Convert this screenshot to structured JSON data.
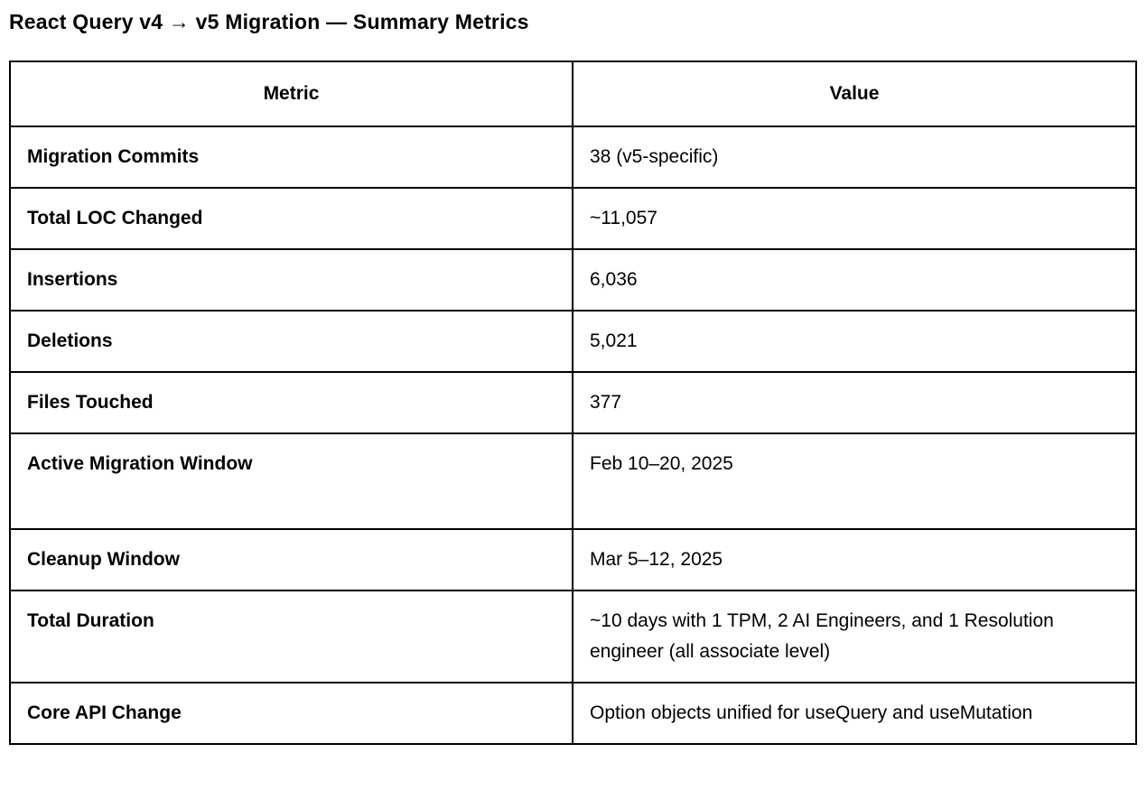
{
  "page": {
    "title": "React Query v4 → v5 Migration — Summary Metrics"
  },
  "table": {
    "columns": [
      "Metric",
      "Value"
    ],
    "rows": [
      {
        "metric": "Migration Commits",
        "value": "38 (v5-specific)"
      },
      {
        "metric": "Total LOC Changed",
        "value": "~11,057"
      },
      {
        "metric": "Insertions",
        "value": "6,036"
      },
      {
        "metric": "Deletions",
        "value": "5,021"
      },
      {
        "metric": "Files Touched",
        "value": "377"
      },
      {
        "metric": "Active Migration Window",
        "value": "Feb 10–20, 2025"
      },
      {
        "metric": "Cleanup Window",
        "value": "Mar 5–12, 2025"
      },
      {
        "metric": "Total Duration",
        "value": "~10 days with 1 TPM, 2 AI Engineers, and 1 Resolution engineer (all associate level)"
      },
      {
        "metric": "Core API Change",
        "value": "Option objects unified for useQuery and useMutation"
      }
    ]
  },
  "colors": {
    "text": "#000000",
    "border": "#000000",
    "background": "#ffffff"
  }
}
